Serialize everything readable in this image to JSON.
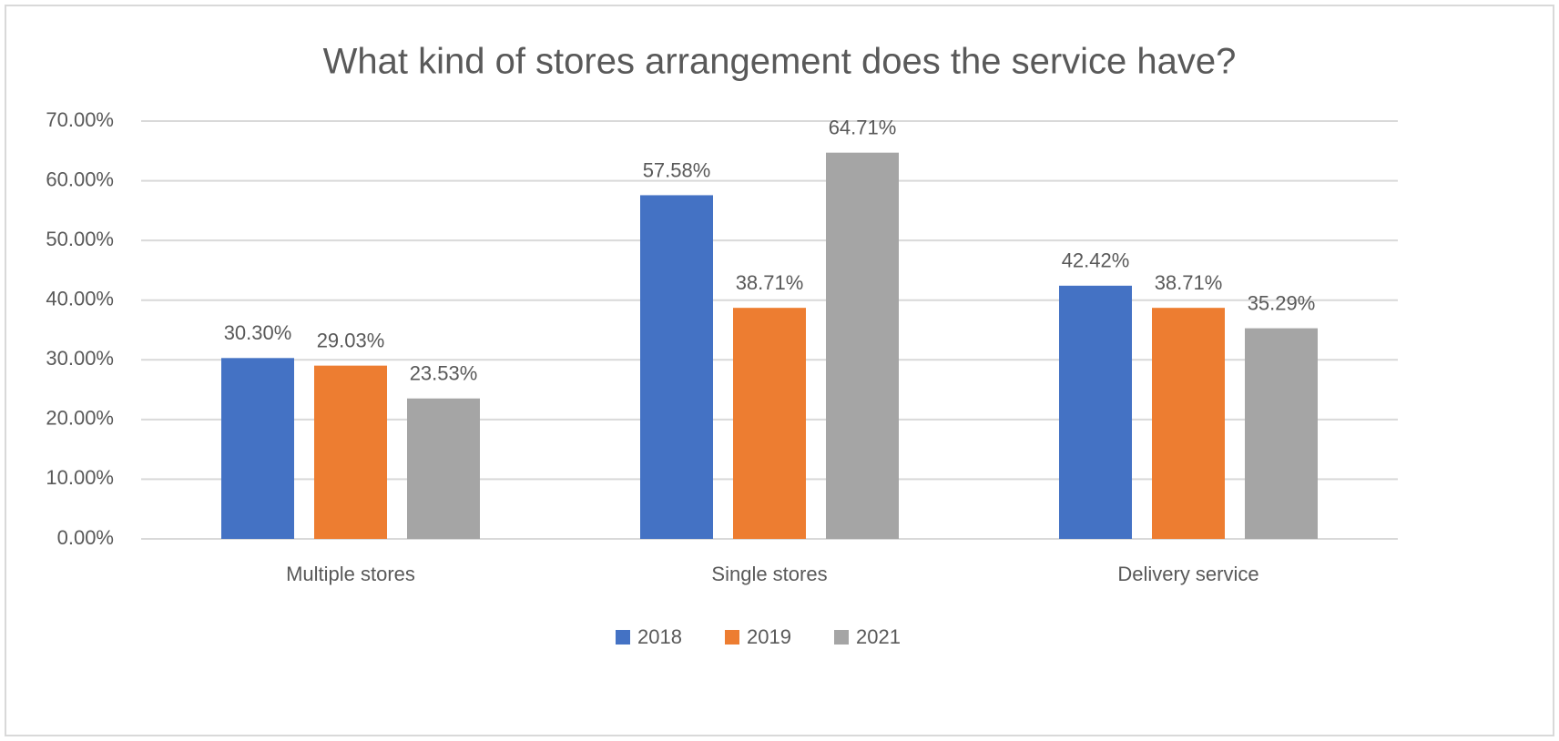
{
  "chart_data": {
    "type": "bar",
    "title": "What kind of stores arrangement does the service have?",
    "categories": [
      "Multiple stores",
      "Single stores",
      "Delivery service"
    ],
    "series": [
      {
        "name": "2018",
        "color": "#4472c4",
        "values": [
          30.3,
          57.58,
          42.42
        ],
        "value_labels": [
          "30.30%",
          "57.58%",
          "42.42%"
        ]
      },
      {
        "name": "2019",
        "color": "#ed7d31",
        "values": [
          29.03,
          38.71,
          38.71
        ],
        "value_labels": [
          "29.03%",
          "38.71%",
          "38.71%"
        ]
      },
      {
        "name": "2021",
        "color": "#a5a5a5",
        "values": [
          23.53,
          64.71,
          35.29
        ],
        "value_labels": [
          "23.53%",
          "64.71%",
          "35.29%"
        ]
      }
    ],
    "ylim": [
      0,
      70
    ],
    "yticks": [
      {
        "value": 0,
        "label": "0.00%"
      },
      {
        "value": 10,
        "label": "10.00%"
      },
      {
        "value": 20,
        "label": "20.00%"
      },
      {
        "value": 30,
        "label": "30.00%"
      },
      {
        "value": 40,
        "label": "40.00%"
      },
      {
        "value": 50,
        "label": "50.00%"
      },
      {
        "value": 60,
        "label": "60.00%"
      },
      {
        "value": 70,
        "label": "70.00%"
      }
    ],
    "grid": true,
    "legend": "bottom"
  }
}
